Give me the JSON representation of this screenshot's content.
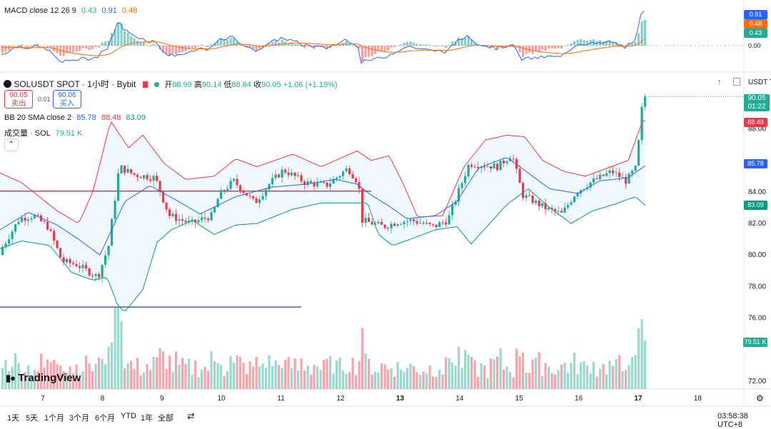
{
  "macd_header": {
    "label": "MACD close 12 26 9",
    "v1": "0.43",
    "v2": "0.91",
    "v3": "0.48"
  },
  "symbol_header": {
    "symbol": "SOLUSDT SPOT · 1小时 · Bybit",
    "open_label": "开",
    "open": "88.99",
    "high_label": "高",
    "high": "90.14",
    "low_label": "低",
    "low": "88.64",
    "close_label": "收",
    "close": "90.05",
    "change": "+1.06 (+1.19%)"
  },
  "sell_box": {
    "price": "90.05",
    "label": "卖出"
  },
  "spread": "0.01",
  "buy_box": {
    "price": "90.06",
    "label": "买入"
  },
  "bb_header": {
    "label": "BB 20 SMA close 2",
    "v1": "85.78",
    "v2": "88.48",
    "v3": "83.09"
  },
  "volume_header": {
    "label": "成交量 · SOL",
    "value": "79.51 K"
  },
  "currency": "USDT",
  "price_tag": {
    "price": "90.05",
    "countdown": "01:22"
  },
  "right_tags": {
    "macd_a": "0.91",
    "macd_b": "0.48",
    "macd_c": "0.43",
    "bb_upper": "88.48",
    "bb_mid": "85.78",
    "bb_lower": "83.09",
    "volume": "79.51 K"
  },
  "logo": "TradingView",
  "timeframes": [
    "1天",
    "5天",
    "1个月",
    "3个月",
    "6个月",
    "YTD",
    "1年",
    "全部"
  ],
  "clock": "03:58:38 UTC+8",
  "colors": {
    "up": "#22ab94",
    "down": "#f23645",
    "bb_upper": "#f23645",
    "bb_mid": "#2962ff",
    "bb_lower": "#089981",
    "macd": "#2962ff",
    "signal": "#ff6d00"
  },
  "chart_data": {
    "type": "candlestick",
    "x_ticks": [
      "7",
      "8",
      "9",
      "10",
      "11",
      "12",
      "13",
      "14",
      "15",
      "16",
      "17",
      "18"
    ],
    "macd_ticks": [
      "0.00"
    ],
    "y_ticks": [
      88.0,
      84.0,
      82.0,
      80.0,
      78.0,
      76.0,
      72.0
    ],
    "ylim": [
      71.5,
      91.6
    ],
    "horizontal_lines": [
      84.05,
      76.7
    ],
    "bb_upper_ctrl": [
      [
        0,
        85.2
      ],
      [
        30,
        84.6
      ],
      [
        80,
        82.8
      ],
      [
        110,
        82.0
      ],
      [
        130,
        84.0
      ],
      [
        155,
        88.5
      ],
      [
        180,
        86.8
      ],
      [
        200,
        87.6
      ],
      [
        230,
        85.8
      ],
      [
        260,
        84.8
      ],
      [
        300,
        85.0
      ],
      [
        330,
        86.1
      ],
      [
        360,
        85.6
      ],
      [
        410,
        86.4
      ],
      [
        450,
        85.6
      ],
      [
        500,
        86.6
      ],
      [
        520,
        86.0
      ],
      [
        545,
        86.3
      ],
      [
        565,
        84.5
      ],
      [
        585,
        82.4
      ],
      [
        620,
        82.5
      ],
      [
        650,
        85.6
      ],
      [
        680,
        87.3
      ],
      [
        710,
        87.6
      ],
      [
        735,
        87.5
      ],
      [
        760,
        86.0
      ],
      [
        790,
        85.3
      ],
      [
        820,
        85.0
      ],
      [
        850,
        85.5
      ],
      [
        880,
        86.0
      ],
      [
        900,
        88.5
      ]
    ],
    "bb_mid_ctrl": [
      [
        0,
        81.6
      ],
      [
        40,
        82.7
      ],
      [
        80,
        81.9
      ],
      [
        110,
        81.0
      ],
      [
        140,
        80.0
      ],
      [
        175,
        83.4
      ],
      [
        210,
        84.4
      ],
      [
        250,
        83.4
      ],
      [
        280,
        82.6
      ],
      [
        330,
        83.7
      ],
      [
        380,
        84.3
      ],
      [
        430,
        84.5
      ],
      [
        470,
        84.8
      ],
      [
        500,
        84.5
      ],
      [
        520,
        83.8
      ],
      [
        545,
        83.1
      ],
      [
        570,
        82.3
      ],
      [
        610,
        82.5
      ],
      [
        640,
        83.4
      ],
      [
        670,
        85.5
      ],
      [
        710,
        86.2
      ],
      [
        740,
        85.2
      ],
      [
        770,
        84.2
      ],
      [
        810,
        83.9
      ],
      [
        840,
        84.7
      ],
      [
        880,
        84.9
      ],
      [
        905,
        85.7
      ]
    ],
    "bb_lower_ctrl": [
      [
        0,
        80.4
      ],
      [
        30,
        80.9
      ],
      [
        70,
        80.6
      ],
      [
        100,
        78.9
      ],
      [
        130,
        78.4
      ],
      [
        150,
        78.6
      ],
      [
        165,
        76.8
      ],
      [
        175,
        76.4
      ],
      [
        200,
        77.8
      ],
      [
        220,
        80.8
      ],
      [
        240,
        81.6
      ],
      [
        270,
        82.2
      ],
      [
        300,
        81.3
      ],
      [
        330,
        81.9
      ],
      [
        360,
        82.0
      ],
      [
        410,
        82.9
      ],
      [
        450,
        83.3
      ],
      [
        490,
        83.3
      ],
      [
        515,
        83.3
      ],
      [
        530,
        81.3
      ],
      [
        550,
        80.6
      ],
      [
        575,
        81.0
      ],
      [
        610,
        81.6
      ],
      [
        640,
        81.8
      ],
      [
        660,
        80.7
      ],
      [
        680,
        81.7
      ],
      [
        710,
        83.2
      ],
      [
        740,
        84.2
      ],
      [
        770,
        83.0
      ],
      [
        800,
        82.0
      ],
      [
        830,
        82.8
      ],
      [
        860,
        83.2
      ],
      [
        890,
        83.7
      ],
      [
        905,
        83.1
      ]
    ],
    "price_path": [
      [
        0,
        80.0
      ],
      [
        30,
        82.3
      ],
      [
        50,
        82.5
      ],
      [
        70,
        81.8
      ],
      [
        90,
        79.6
      ],
      [
        110,
        79.4
      ],
      [
        140,
        78.6
      ],
      [
        155,
        80.6
      ],
      [
        170,
        85.6
      ],
      [
        190,
        85.1
      ],
      [
        220,
        84.9
      ],
      [
        240,
        82.5
      ],
      [
        270,
        82.0
      ],
      [
        300,
        82.5
      ],
      [
        310,
        83.8
      ],
      [
        330,
        84.7
      ],
      [
        360,
        83.3
      ],
      [
        380,
        84.5
      ],
      [
        400,
        85.4
      ],
      [
        430,
        84.6
      ],
      [
        460,
        84.4
      ],
      [
        490,
        85.5
      ],
      [
        505,
        84.6
      ],
      [
        510,
        82.2
      ],
      [
        540,
        81.8
      ],
      [
        560,
        82.1
      ],
      [
        580,
        82.2
      ],
      [
        610,
        81.8
      ],
      [
        630,
        82.2
      ],
      [
        660,
        85.8
      ],
      [
        700,
        85.6
      ],
      [
        720,
        86.4
      ],
      [
        735,
        83.8
      ],
      [
        770,
        82.9
      ],
      [
        790,
        82.6
      ],
      [
        810,
        84.0
      ],
      [
        830,
        84.6
      ],
      [
        860,
        85.3
      ],
      [
        880,
        84.7
      ],
      [
        895,
        85.6
      ],
      [
        900,
        88.7
      ],
      [
        905,
        90.05
      ]
    ],
    "volume_ylim": [
      0,
      100
    ],
    "volume_last": 79.51
  }
}
